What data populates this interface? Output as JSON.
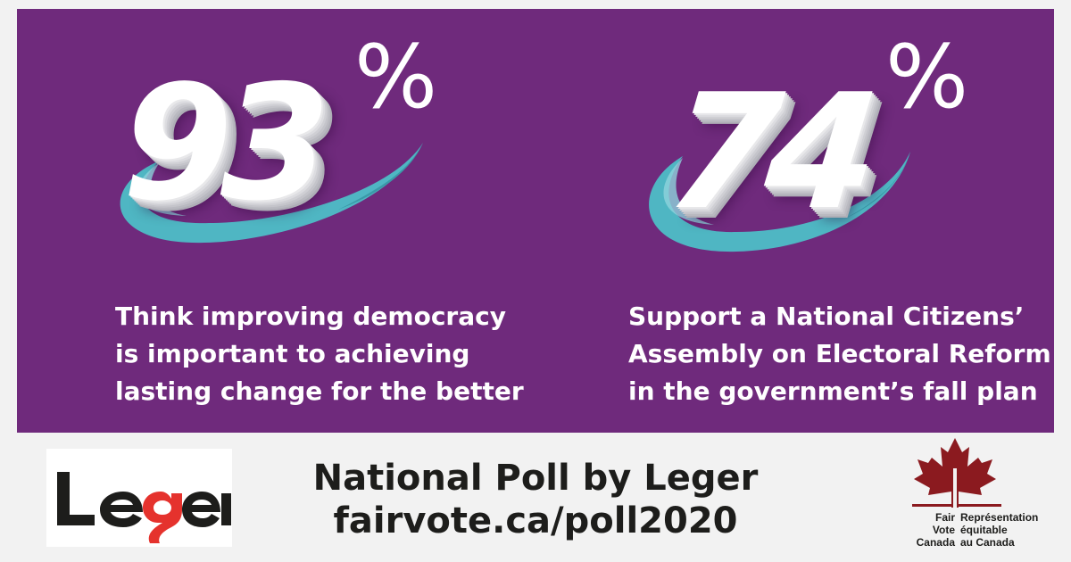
{
  "stats": [
    {
      "value": "93",
      "unit": "%",
      "caption_lines": [
        "Think improving democracy",
        "is important to achieving",
        "lasting change for the better"
      ]
    },
    {
      "value": "74",
      "unit": "%",
      "caption_lines": [
        "Support a National Citizens’",
        "Assembly on Electoral Reform",
        "in the government’s fall plan"
      ]
    }
  ],
  "footer": {
    "line1": "National Poll by Leger",
    "line2": "fairvote.ca/poll2020"
  },
  "leger_logo": {
    "text": "Leger",
    "icon": "leger-logo-icon"
  },
  "fvc_logo": {
    "icon": "maple-leaf-icon",
    "english_lines": [
      "Fair",
      "Vote",
      "Canada"
    ],
    "french_lines": [
      "Représentation",
      "équitable",
      "au Canada"
    ]
  },
  "colors": {
    "panel_background": "#6f2a7c",
    "page_background": "#f2f2f2",
    "swoosh": "#4fb6c3",
    "swoosh_light": "#8fd3dc",
    "maple_red": "#8b1a1f",
    "leger_red": "#e5322d",
    "text_dark": "#1d1d1b",
    "text_light": "#ffffff"
  }
}
